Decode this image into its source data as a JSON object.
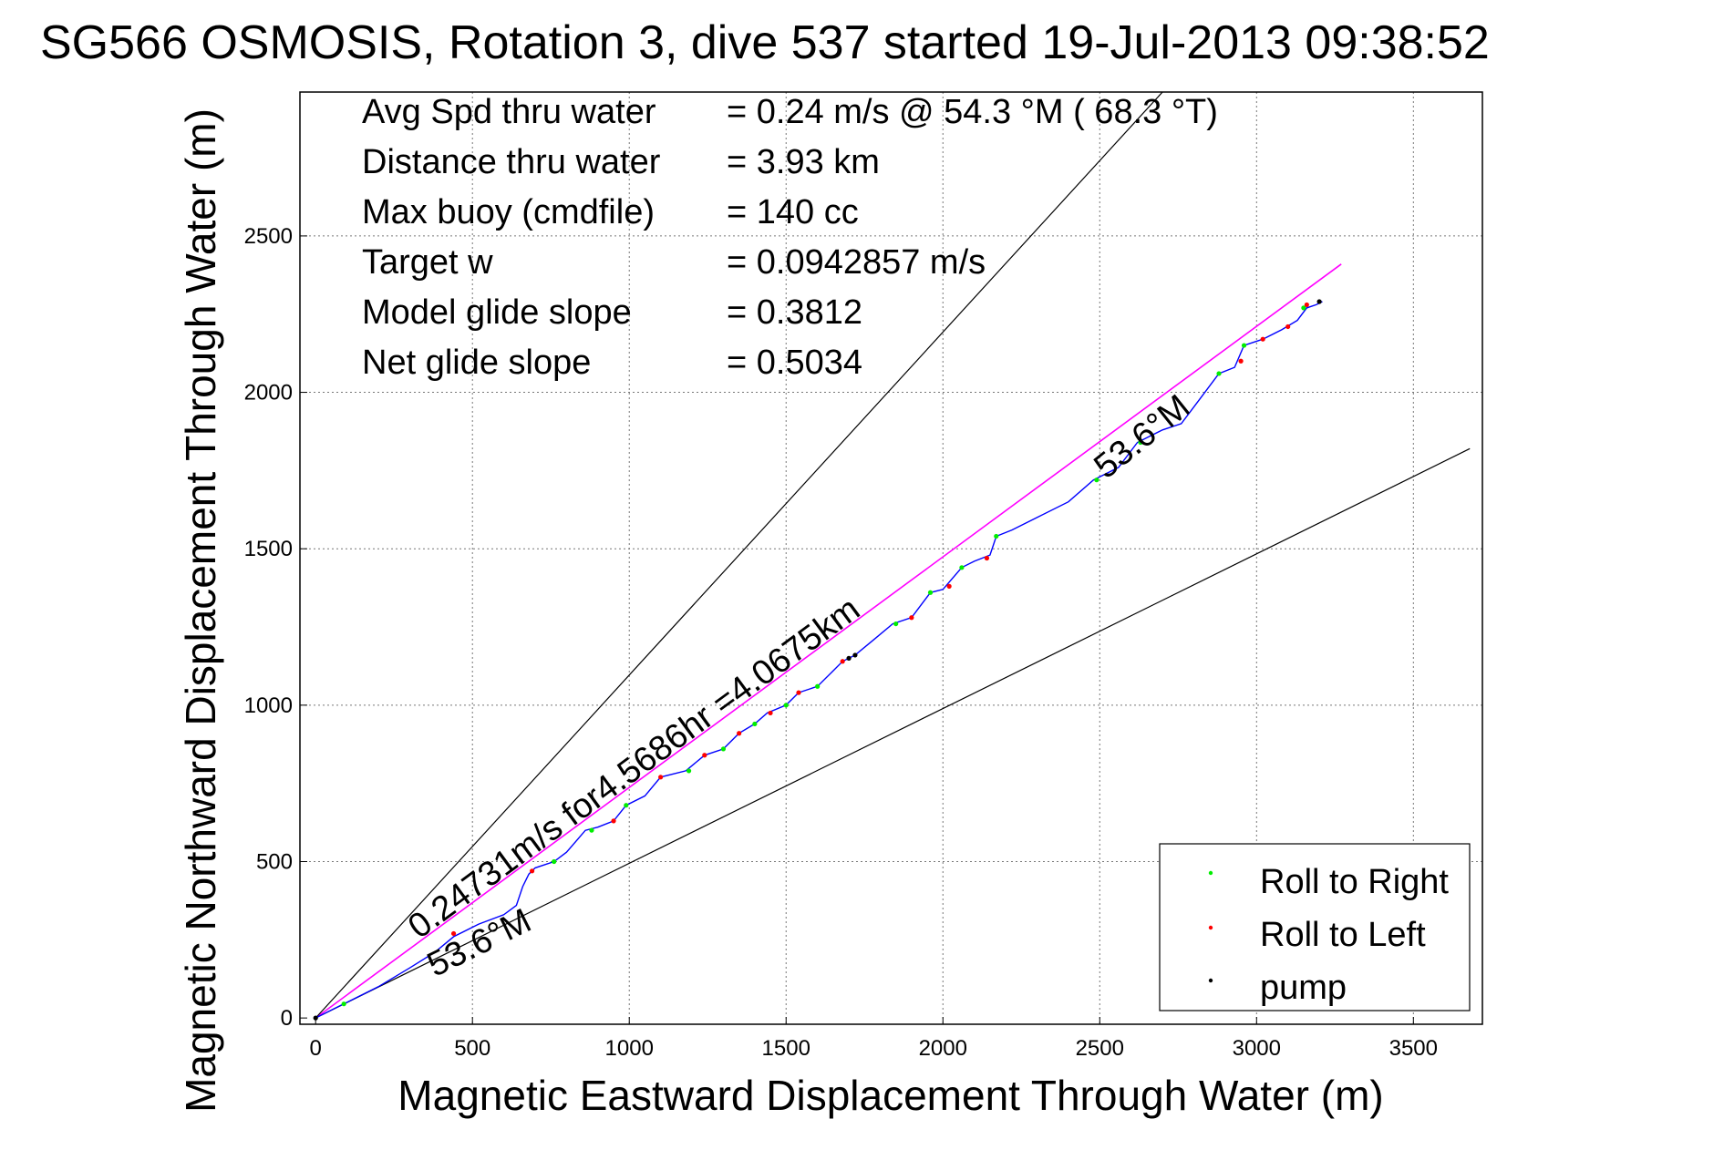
{
  "title": "SG566 OSMOSIS, Rotation 3, dive 537 started 19-Jul-2013 09:38:52",
  "stats": [
    {
      "label": "Avg Spd thru water",
      "value": "=  0.24 m/s @  54.3 °M ( 68.3 °T)"
    },
    {
      "label": "Distance thru water",
      "value": "=  3.93 km"
    },
    {
      "label": "Max buoy (cmdfile)",
      "value": "= 140 cc"
    },
    {
      "label": "Target w",
      "value": "= 0.0942857 m/s"
    },
    {
      "label": "Model glide slope",
      "value": "= 0.3812"
    },
    {
      "label": "Net glide slope",
      "value": "= 0.5034"
    }
  ],
  "colors": {
    "track": "#0000ff",
    "net_line": "#ff00ff",
    "roll_right": "#00ee00",
    "roll_left": "#ff0000",
    "pump": "#000000",
    "reference_lines": "#000000"
  },
  "chart_data": {
    "type": "line",
    "title": "SG566 OSMOSIS, Rotation 3, dive 537 started 19-Jul-2013 09:38:52",
    "xlabel": "Magnetic Eastward Displacement Through Water (m)",
    "ylabel": "Magnetic Northward Displacement Through Water (m)",
    "xlim": [
      -50,
      3720
    ],
    "ylim": [
      -20,
      2960
    ],
    "xticks": [
      0,
      500,
      1000,
      1500,
      2000,
      2500,
      3000,
      3500
    ],
    "yticks": [
      0,
      500,
      1000,
      1500,
      2000,
      2500
    ],
    "grid": true,
    "legend_position": "bottom-right",
    "series": [
      {
        "name": "",
        "kind": "track",
        "color": "#0000ff",
        "points": [
          [
            0,
            0
          ],
          [
            60,
            30
          ],
          [
            120,
            60
          ],
          [
            200,
            100
          ],
          [
            300,
            160
          ],
          [
            380,
            210
          ],
          [
            440,
            260
          ],
          [
            520,
            300
          ],
          [
            600,
            330
          ],
          [
            640,
            360
          ],
          [
            660,
            420
          ],
          [
            680,
            460
          ],
          [
            700,
            480
          ],
          [
            760,
            500
          ],
          [
            800,
            530
          ],
          [
            860,
            600
          ],
          [
            900,
            610
          ],
          [
            950,
            630
          ],
          [
            990,
            680
          ],
          [
            1050,
            710
          ],
          [
            1100,
            770
          ],
          [
            1180,
            790
          ],
          [
            1240,
            840
          ],
          [
            1300,
            860
          ],
          [
            1350,
            910
          ],
          [
            1400,
            940
          ],
          [
            1440,
            975
          ],
          [
            1500,
            1000
          ],
          [
            1540,
            1040
          ],
          [
            1600,
            1060
          ],
          [
            1650,
            1110
          ],
          [
            1680,
            1140
          ],
          [
            1720,
            1160
          ],
          [
            1780,
            1210
          ],
          [
            1840,
            1260
          ],
          [
            1900,
            1280
          ],
          [
            1960,
            1360
          ],
          [
            2000,
            1370
          ],
          [
            2060,
            1440
          ],
          [
            2100,
            1460
          ],
          [
            2150,
            1480
          ],
          [
            2170,
            1540
          ],
          [
            2220,
            1560
          ],
          [
            2300,
            1600
          ],
          [
            2400,
            1650
          ],
          [
            2480,
            1720
          ],
          [
            2560,
            1760
          ],
          [
            2620,
            1840
          ],
          [
            2700,
            1880
          ],
          [
            2760,
            1900
          ],
          [
            2820,
            1980
          ],
          [
            2880,
            2060
          ],
          [
            2930,
            2080
          ],
          [
            2960,
            2150
          ],
          [
            3020,
            2170
          ],
          [
            3080,
            2200
          ],
          [
            3130,
            2230
          ],
          [
            3160,
            2270
          ],
          [
            3190,
            2280
          ],
          [
            3210,
            2290
          ]
        ]
      },
      {
        "name": "",
        "kind": "net_line",
        "color": "#ff00ff",
        "points": [
          [
            0,
            0
          ],
          [
            3270,
            2410
          ]
        ]
      },
      {
        "name": "",
        "kind": "reference",
        "color": "#000000",
        "points": [
          [
            0,
            0
          ],
          [
            2700,
            2960
          ]
        ]
      },
      {
        "name": "",
        "kind": "reference",
        "color": "#000000",
        "points": [
          [
            0,
            0
          ],
          [
            3680,
            1820
          ]
        ]
      },
      {
        "name": "Roll to Right",
        "kind": "markers",
        "color": "#00ee00",
        "points": [
          [
            90,
            45
          ],
          [
            760,
            500
          ],
          [
            880,
            600
          ],
          [
            990,
            680
          ],
          [
            1190,
            790
          ],
          [
            1300,
            860
          ],
          [
            1400,
            940
          ],
          [
            1500,
            1000
          ],
          [
            1600,
            1060
          ],
          [
            1850,
            1260
          ],
          [
            1960,
            1360
          ],
          [
            2060,
            1440
          ],
          [
            2170,
            1540
          ],
          [
            2490,
            1720
          ],
          [
            2630,
            1840
          ],
          [
            2880,
            2060
          ],
          [
            2960,
            2150
          ],
          [
            3150,
            2270
          ]
        ]
      },
      {
        "name": "Roll to Left",
        "kind": "markers",
        "color": "#ff0000",
        "points": [
          [
            440,
            270
          ],
          [
            690,
            470
          ],
          [
            950,
            630
          ],
          [
            1100,
            770
          ],
          [
            1240,
            840
          ],
          [
            1350,
            910
          ],
          [
            1450,
            975
          ],
          [
            1540,
            1040
          ],
          [
            1680,
            1140
          ],
          [
            1900,
            1280
          ],
          [
            2020,
            1380
          ],
          [
            2140,
            1470
          ],
          [
            2950,
            2100
          ],
          [
            3020,
            2170
          ],
          [
            3100,
            2210
          ],
          [
            3160,
            2280
          ]
        ]
      },
      {
        "name": "pump",
        "kind": "markers",
        "color": "#000000",
        "points": [
          [
            0,
            0
          ],
          [
            1700,
            1150
          ],
          [
            1720,
            1160
          ],
          [
            3200,
            2290
          ]
        ]
      }
    ],
    "annotations": [
      {
        "text": "0.24731m/s for4.5686hr =4.0675km",
        "x": 330,
        "y": 250
      },
      {
        "text": "53.6°M",
        "x": 2520,
        "y": 1720
      },
      {
        "text": "53.6°M",
        "x": 380,
        "y": 130
      }
    ]
  }
}
